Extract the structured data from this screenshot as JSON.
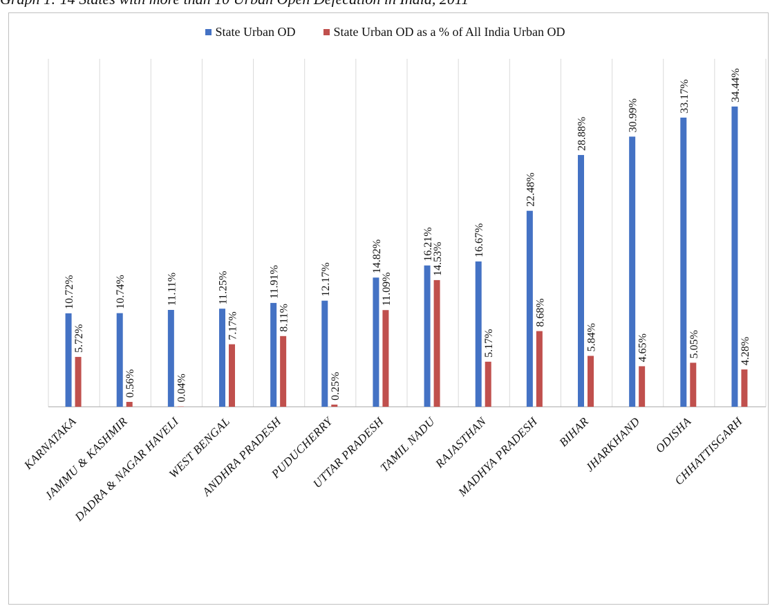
{
  "caption": "Graph 1: 14 States with more than 10 Urban Open Defecation in India, 2011",
  "colors": {
    "series1": "#4472c4",
    "series2": "#c0504d",
    "grid": "#d9d9d9",
    "axis": "#a6a6a6"
  },
  "chart_data": {
    "type": "bar",
    "title": "",
    "xlabel": "",
    "ylabel": "",
    "ylim": [
      0,
      40
    ],
    "grid": "vertical",
    "legend": "top-center",
    "categories": [
      "KARNATAKA",
      "JAMMU & KASHMIR",
      "DADRA & NAGAR HAVELI",
      "WEST BENGAL",
      "ANDHRA PRADESH",
      "PUDUCHERRY",
      "UTTAR PRADESH",
      "TAMIL NADU",
      "RAJASTHAN",
      "MADHYA PRADESH",
      "BIHAR",
      "JHARKHAND",
      "ODISHA",
      "CHHATTISGARH"
    ],
    "series": [
      {
        "name": "State Urban OD",
        "values": [
          10.72,
          10.74,
          11.11,
          11.25,
          11.91,
          12.17,
          14.82,
          16.21,
          16.67,
          22.48,
          28.88,
          30.99,
          33.17,
          34.44
        ],
        "labels": [
          "10.72%",
          "10.74%",
          "11.11%",
          "11.25%",
          "11.91%",
          "12.17%",
          "14.82%",
          "16.21%",
          "16.67%",
          "22.48%",
          "28.88%",
          "30.99%",
          "33.17%",
          "34.44%"
        ]
      },
      {
        "name": "State Urban OD as a % of All India Urban OD",
        "values": [
          5.72,
          0.56,
          0.04,
          7.17,
          8.11,
          0.25,
          11.09,
          14.53,
          5.17,
          8.68,
          5.84,
          4.65,
          5.05,
          4.28
        ],
        "labels": [
          "5.72%",
          "0.56%",
          "0.04%",
          "7.17%",
          "8.11%",
          "0.25%",
          "11.09%",
          "14.53%",
          "5.17%",
          "8.68%",
          "5.84%",
          "4.65%",
          "5.05%",
          "4.28%"
        ]
      }
    ]
  }
}
